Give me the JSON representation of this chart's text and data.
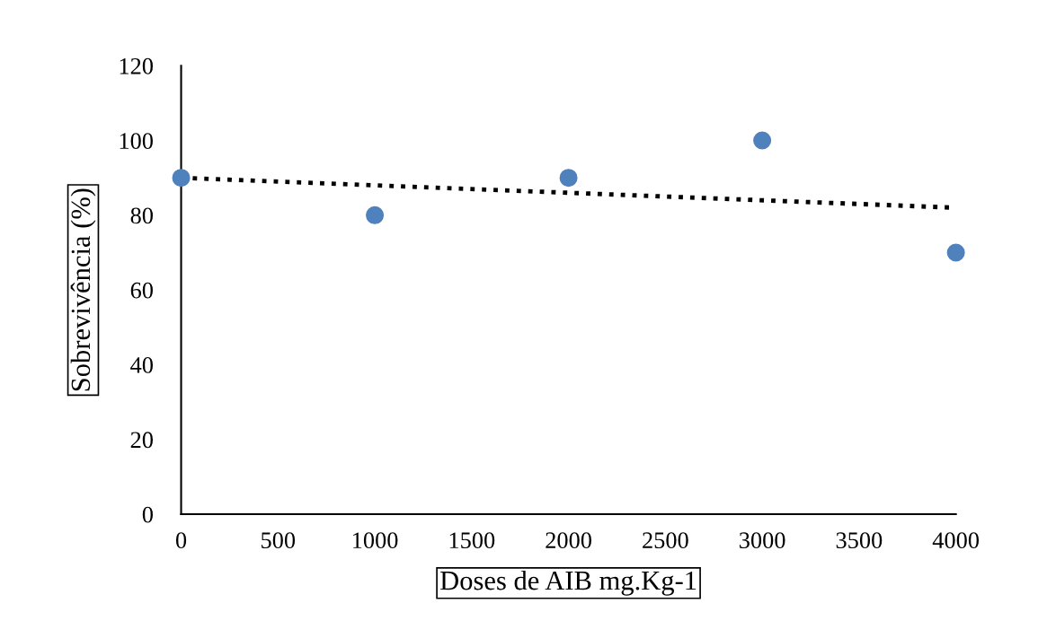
{
  "chart_data": {
    "type": "scatter",
    "xlabel": "Doses de AIB mg.Kg-1",
    "ylabel": "Sobrevivência (%)",
    "x": [
      0,
      1000,
      2000,
      3000,
      4000
    ],
    "series": [
      {
        "color": "#4f81bd",
        "marker": "circle",
        "values": [
          90,
          80,
          90,
          100,
          70
        ]
      },
      {
        "type": "line",
        "color": "#000000",
        "line_style": "dotted",
        "marker": "none",
        "x": [
          0,
          4000
        ],
        "values": [
          90,
          82
        ]
      }
    ],
    "xlim": [
      0,
      4000
    ],
    "xticks": [
      0,
      500,
      1000,
      1500,
      2000,
      2500,
      3000,
      3500,
      4000
    ],
    "ylim": [
      0,
      120
    ],
    "yticks": [
      0,
      20,
      40,
      60,
      80,
      100,
      120
    ],
    "grid": false,
    "legend": false
  }
}
